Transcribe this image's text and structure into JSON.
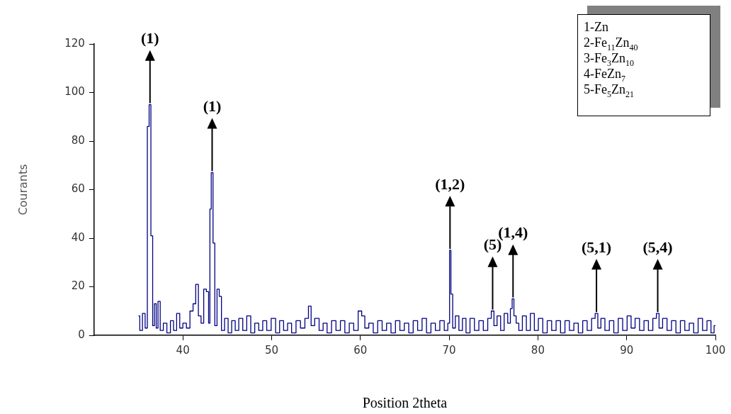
{
  "chart_data": {
    "type": "step",
    "xlabel": "Position 2theta",
    "ylabel": "Courants",
    "x": [
      35.0,
      35.3,
      35.6,
      35.9,
      36.1,
      36.3,
      36.5,
      36.7,
      36.9,
      37.1,
      37.3,
      37.6,
      38.0,
      38.4,
      38.8,
      39.1,
      39.5,
      39.8,
      40.2,
      40.6,
      41.0,
      41.3,
      41.6,
      41.9,
      42.2,
      42.5,
      42.8,
      43.0,
      43.1,
      43.3,
      43.5,
      43.7,
      44.0,
      44.2,
      44.5,
      44.9,
      45.3,
      45.7,
      46.1,
      46.5,
      47.0,
      47.4,
      47.9,
      48.3,
      48.8,
      49.2,
      49.7,
      50.2,
      50.7,
      51.1,
      51.6,
      52.0,
      52.5,
      53.0,
      53.5,
      54.0,
      54.3,
      54.6,
      55.1,
      55.6,
      56.0,
      56.5,
      57.0,
      57.5,
      58.0,
      58.5,
      59.0,
      59.5,
      60.0,
      60.3,
      60.7,
      61.2,
      61.7,
      62.2,
      62.7,
      63.2,
      63.7,
      64.2,
      64.7,
      65.2,
      65.7,
      66.2,
      66.7,
      67.2,
      67.7,
      68.2,
      68.7,
      69.2,
      69.7,
      70.0,
      70.1,
      70.3,
      70.5,
      70.9,
      71.3,
      71.7,
      72.1,
      72.6,
      73.1,
      73.6,
      74.1,
      74.6,
      74.9,
      75.2,
      75.6,
      76.0,
      76.4,
      76.8,
      77.0,
      77.2,
      77.4,
      77.7,
      78.0,
      78.5,
      78.9,
      79.4,
      79.8,
      80.3,
      80.8,
      81.3,
      81.8,
      82.3,
      82.8,
      83.3,
      83.8,
      84.3,
      84.8,
      85.3,
      85.8,
      86.3,
      86.6,
      86.9,
      87.3,
      87.8,
      88.3,
      88.8,
      89.3,
      89.8,
      90.3,
      90.7,
      91.2,
      91.7,
      92.2,
      92.7,
      93.2,
      93.5,
      93.8,
      94.3,
      94.8,
      95.3,
      95.8,
      96.3,
      96.8,
      97.3,
      97.8,
      98.3,
      98.8,
      99.3,
      99.7,
      100.0
    ],
    "series": [
      {
        "color": "#000080",
        "values": [
          8,
          2,
          9,
          3,
          86,
          95,
          41,
          4,
          13,
          3,
          14,
          2,
          5,
          1,
          6,
          2,
          9,
          3,
          5,
          3,
          10,
          13,
          21,
          8,
          5,
          19,
          18,
          5,
          52,
          67,
          38,
          4,
          19,
          16,
          2,
          7,
          1,
          6,
          2,
          7,
          2,
          8,
          1,
          5,
          2,
          6,
          2,
          7,
          1,
          6,
          2,
          5,
          1,
          6,
          3,
          7,
          12,
          4,
          7,
          2,
          5,
          1,
          6,
          2,
          6,
          1,
          5,
          2,
          10,
          8,
          3,
          5,
          1,
          6,
          2,
          5,
          1,
          6,
          2,
          5,
          1,
          6,
          2,
          7,
          1,
          5,
          2,
          6,
          2,
          5,
          35,
          17,
          3,
          8,
          2,
          7,
          1,
          7,
          2,
          6,
          2,
          7,
          10,
          4,
          8,
          2,
          9,
          5,
          11,
          15,
          8,
          5,
          2,
          8,
          2,
          9,
          2,
          7,
          1,
          6,
          2,
          6,
          1,
          6,
          2,
          5,
          1,
          6,
          2,
          7,
          9,
          3,
          7,
          2,
          6,
          1,
          7,
          2,
          8,
          3,
          7,
          2,
          6,
          2,
          7,
          9,
          3,
          7,
          2,
          6,
          1,
          6,
          2,
          5,
          1,
          7,
          2,
          6,
          1,
          4
        ]
      }
    ],
    "xlim": [
      30,
      100
    ],
    "xticks": [
      40,
      50,
      60,
      70,
      80,
      90,
      100
    ],
    "ylim": [
      0,
      120
    ],
    "yticks": [
      0,
      20,
      40,
      60,
      80,
      100,
      120
    ],
    "grid": false,
    "legend": false,
    "marker": "none",
    "line_style": "solid",
    "annotations": [
      {
        "text": "(1)",
        "x": 36.3,
        "y": 95
      },
      {
        "text": "(1)",
        "x": 43.3,
        "y": 67
      },
      {
        "text": "(1,2)",
        "x": 70.1,
        "y": 35
      },
      {
        "text": "(5)",
        "x": 74.9,
        "y": 10
      },
      {
        "text": "(1,4)",
        "x": 77.2,
        "y": 15
      },
      {
        "text": "(5,1)",
        "x": 86.6,
        "y": 9
      },
      {
        "text": "(5,4)",
        "x": 93.5,
        "y": 9
      },
      "1-Zn",
      "2-Fe$_{11}$Zn$_{40}$",
      "3-Fe$_{3}$Zn$_{10}$",
      "4-FeZn$_{7}$",
      "5-Fe$_{5}$Zn$_{21}$"
    ]
  }
}
